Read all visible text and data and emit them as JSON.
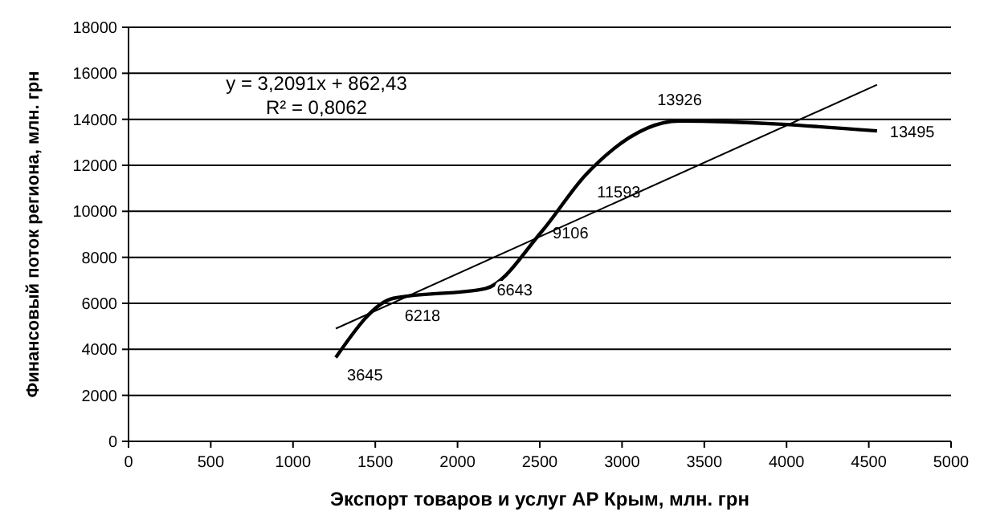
{
  "chart_data": {
    "type": "line",
    "xlabel": "Экспорт товаров и услуг АР Крым, млн. грн",
    "ylabel": "Финансовый поток региона, млн. грн",
    "xlim": [
      0,
      5000
    ],
    "xticks": [
      0,
      500,
      1000,
      1500,
      2000,
      2500,
      3000,
      3500,
      4000,
      4500,
      5000
    ],
    "ylim": [
      0,
      18000
    ],
    "yticks": [
      0,
      2000,
      4000,
      6000,
      8000,
      10000,
      12000,
      14000,
      16000,
      18000
    ],
    "grid": "y",
    "marker": "none",
    "line_style": "solid",
    "series": [
      {
        "x": [
          1260,
          1610,
          2170,
          2510,
          2780,
          3350,
          4550
        ],
        "values": [
          3645,
          6218,
          6643,
          9106,
          11593,
          13926,
          13495
        ],
        "color": "#000000",
        "data_labels": true
      },
      {
        "x": [
          1260,
          4550
        ],
        "values": [
          4900,
          15500
        ],
        "color": "#000000"
      }
    ],
    "annotations": [
      "y = 3,2091x + 862,43",
      "R² = 0,8062"
    ]
  }
}
